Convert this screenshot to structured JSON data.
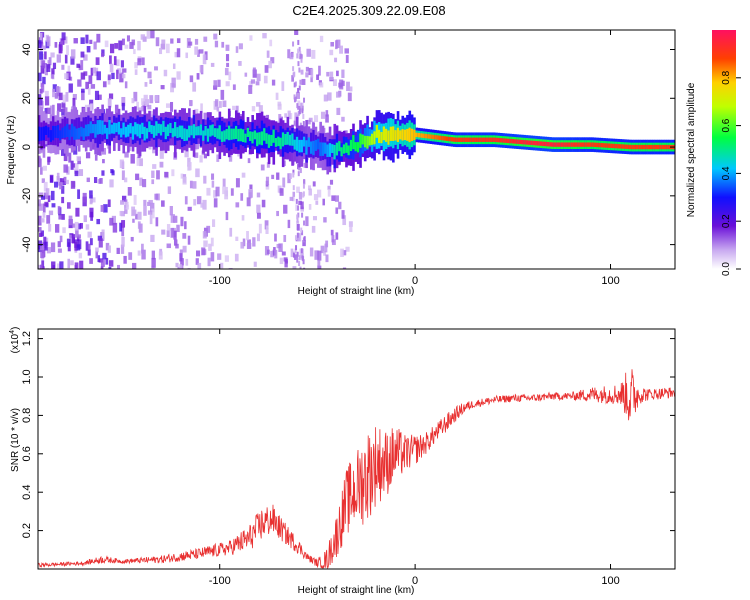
{
  "title": "C2E4.2025.309.22.09.E08",
  "colors": {
    "snr_line": "#e83030",
    "axis": "#000000"
  },
  "chart_data": [
    {
      "type": "heatmap",
      "xlabel": "Height of straight line (km)",
      "ylabel": "Frequency (Hz)",
      "xlim": [
        -193,
        133
      ],
      "ylim": [
        -50,
        48
      ],
      "xticks": [
        -100,
        0,
        100
      ],
      "xtick_labels": [
        "-100",
        "0",
        "100"
      ],
      "yticks": [
        -40,
        -20,
        0,
        20,
        40
      ],
      "ytick_labels": [
        "-40",
        "-20",
        "0",
        "20",
        "40"
      ],
      "colorbar": {
        "label": "Normalized spectral amplitude",
        "range": [
          0,
          1
        ],
        "ticks": [
          0.0,
          0.2,
          0.4,
          0.6,
          0.8
        ],
        "tick_labels": [
          "0.0",
          "0.2",
          "0.4",
          "0.6",
          "0.8"
        ]
      },
      "ridge": {
        "x": [
          -188,
          -160,
          -130,
          -110,
          -90,
          -70,
          -50,
          -45,
          -40,
          -30,
          -20,
          -10,
          0,
          10,
          20,
          40,
          55,
          70,
          90,
          110,
          133
        ],
        "frequency": [
          6,
          7,
          7,
          6,
          5,
          3,
          0,
          -2,
          -1,
          1,
          5,
          5,
          5,
          4,
          3,
          3,
          2,
          1,
          1,
          0,
          0
        ],
        "amplitude": [
          0.3,
          0.4,
          0.45,
          0.45,
          0.5,
          0.5,
          0.35,
          0.4,
          0.5,
          0.55,
          0.7,
          0.75,
          0.8,
          0.85,
          0.9,
          0.92,
          0.95,
          0.95,
          0.9,
          0.9,
          0.9
        ]
      }
    },
    {
      "type": "line",
      "xlabel": "Height of straight line (km)",
      "ylabel": "SNR (10 * v/v)",
      "y_multiplier": "(x10",
      "y_multiplier_exp": "4",
      "y_multiplier_close": ")",
      "xlim": [
        -193,
        133
      ],
      "ylim": [
        0,
        1.25
      ],
      "xticks": [
        -100,
        0,
        100
      ],
      "xtick_labels": [
        "-100",
        "0",
        "100"
      ],
      "yticks": [
        0.2,
        0.4,
        0.6,
        0.8,
        1.0,
        1.2
      ],
      "ytick_labels": [
        "0.2",
        "0.4",
        "0.6",
        "0.8",
        "1.0",
        "1.2"
      ],
      "series": [
        {
          "name": "SNR",
          "x": [
            -193,
            -170,
            -160,
            -150,
            -130,
            -110,
            -95,
            -85,
            -78,
            -73,
            -68,
            -60,
            -55,
            -50,
            -45,
            -40,
            -35,
            -30,
            -25,
            -20,
            -15,
            -10,
            -5,
            0,
            5,
            10,
            15,
            20,
            25,
            30,
            35,
            40,
            50,
            60,
            70,
            80,
            90,
            100,
            105,
            108,
            110,
            115,
            120,
            133
          ],
          "baseline": [
            0.02,
            0.03,
            0.05,
            0.04,
            0.05,
            0.08,
            0.11,
            0.16,
            0.24,
            0.26,
            0.2,
            0.12,
            0.06,
            0.03,
            0.05,
            0.18,
            0.35,
            0.42,
            0.48,
            0.55,
            0.55,
            0.6,
            0.6,
            0.62,
            0.65,
            0.7,
            0.75,
            0.8,
            0.84,
            0.86,
            0.87,
            0.88,
            0.89,
            0.89,
            0.9,
            0.9,
            0.91,
            0.91,
            0.91,
            0.91,
            0.9,
            0.91,
            0.91,
            0.92
          ],
          "noise": [
            0.01,
            0.01,
            0.02,
            0.01,
            0.02,
            0.03,
            0.04,
            0.07,
            0.09,
            0.08,
            0.06,
            0.04,
            0.02,
            0.02,
            0.06,
            0.12,
            0.18,
            0.2,
            0.25,
            0.22,
            0.18,
            0.15,
            0.1,
            0.08,
            0.06,
            0.05,
            0.05,
            0.04,
            0.03,
            0.02,
            0.02,
            0.02,
            0.02,
            0.02,
            0.02,
            0.02,
            0.04,
            0.05,
            0.06,
            0.12,
            0.18,
            0.05,
            0.03,
            0.03
          ]
        }
      ]
    }
  ]
}
